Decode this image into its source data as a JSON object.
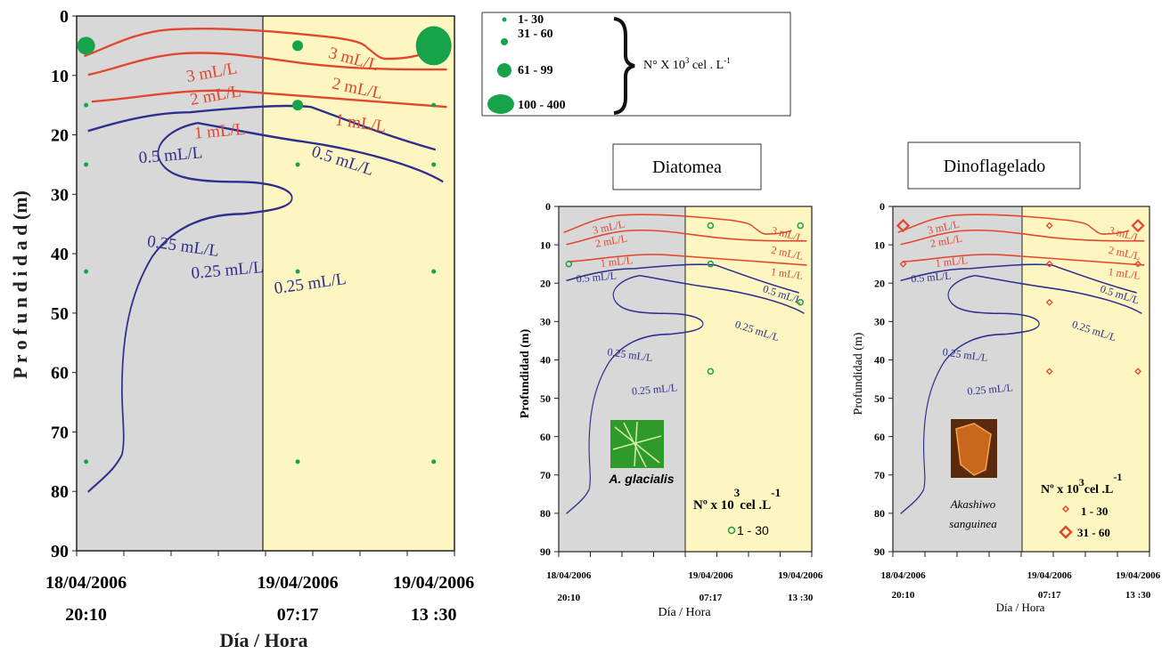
{
  "chart_data": [
    {
      "type": "scatter",
      "panel": "main",
      "ylabel": "P r o f u n d i d a d  (m)",
      "xlabel": "Día / Hora",
      "yticks": [
        "0",
        "10",
        "20",
        "30",
        "40",
        "50",
        "60",
        "70",
        "80",
        "90"
      ],
      "ylim": [
        0,
        90
      ],
      "xticks": [
        {
          "date": "18/04/2006",
          "time": "20:10"
        },
        {
          "date": "19/04/2006",
          "time": "07:17"
        },
        {
          "date": "19/04/2006",
          "time": "13 :30"
        }
      ],
      "contour_labels": [
        "3 mL/L",
        "2 mL/L",
        "1 mL/L",
        "0.5 mL/L",
        "0.25 mL/L",
        "0.25 mL/L",
        "0.25 mL/L",
        "3 mL/L",
        "2 mL/L",
        "1 mL/L",
        "0.5 mL/L"
      ],
      "points": [
        {
          "station": "18/04/2006 20:10",
          "depth": 5,
          "class": "61 - 99"
        },
        {
          "station": "18/04/2006 20:10",
          "depth": 15,
          "class": "1- 30"
        },
        {
          "station": "18/04/2006 20:10",
          "depth": 25,
          "class": "1- 30"
        },
        {
          "station": "18/04/2006 20:10",
          "depth": 43,
          "class": "1- 30"
        },
        {
          "station": "18/04/2006 20:10",
          "depth": 75,
          "class": "1- 30"
        },
        {
          "station": "19/04/2006 07:17",
          "depth": 5,
          "class": "31 - 60"
        },
        {
          "station": "19/04/2006 07:17",
          "depth": 15,
          "class": "31 - 60"
        },
        {
          "station": "19/04/2006 07:17",
          "depth": 25,
          "class": "1- 30"
        },
        {
          "station": "19/04/2006 07:17",
          "depth": 43,
          "class": "1- 30"
        },
        {
          "station": "19/04/2006 07:17",
          "depth": 75,
          "class": "1- 30"
        },
        {
          "station": "19/04/2006 13:30",
          "depth": 5,
          "class": "100 - 400"
        },
        {
          "station": "19/04/2006 13:30",
          "depth": 15,
          "class": "1- 30"
        },
        {
          "station": "19/04/2006 13:30",
          "depth": 25,
          "class": "1- 30"
        },
        {
          "station": "19/04/2006 13:30",
          "depth": 43,
          "class": "1- 30"
        },
        {
          "station": "19/04/2006 13:30",
          "depth": 75,
          "class": "1- 30"
        }
      ],
      "legend": {
        "entries": [
          "1- 30",
          "31 - 60",
          "61 - 99",
          "100 - 400"
        ],
        "unit_prefix": "N° X 10",
        "unit_exp": "3",
        "unit_mid": " cel . L",
        "unit_exp2": "-1"
      },
      "colors": {
        "night_bg": "#d8d8d8",
        "day_bg": "#fdf6c0",
        "red": "#e2462d",
        "blue": "#2e2e8e",
        "green": "#16a34a"
      }
    },
    {
      "type": "scatter",
      "panel": "diatomea",
      "title": "Diatomea",
      "ylabel": "Profundidad (m)",
      "xlabel": "Día / Hora",
      "yticks": [
        "0",
        "10",
        "20",
        "30",
        "40",
        "50",
        "60",
        "70",
        "80",
        "90"
      ],
      "xticks": [
        {
          "date": "18/04/2006",
          "time": "20:10"
        },
        {
          "date": "19/04/2006",
          "time": "07:17"
        },
        {
          "date": "19/04/2006",
          "time": "13 :30"
        }
      ],
      "contour_labels": [
        "3 mL/L",
        "2 mL/L",
        "1 mL/L",
        "0.5 mL/L",
        "0.25 mL/L",
        "0.25 mL/L",
        "0.25 mL/L",
        "3 mL/L",
        "2 mL/L",
        "1 mL/L",
        "0.5 mL/L"
      ],
      "points": [
        {
          "station": "18/04/2006 20:10",
          "depth": 15,
          "class": "1 - 30"
        },
        {
          "station": "19/04/2006 07:17",
          "depth": 5,
          "class": "1 - 30"
        },
        {
          "station": "19/04/2006 07:17",
          "depth": 15,
          "class": "1 - 30"
        },
        {
          "station": "19/04/2006 07:17",
          "depth": 43,
          "class": "1 - 30"
        },
        {
          "station": "19/04/2006 13:30",
          "depth": 5,
          "class": "1 - 30"
        },
        {
          "station": "19/04/2006 13:30",
          "depth": 25,
          "class": "1 - 30"
        }
      ],
      "species": "A. glacialis",
      "legend": {
        "unit_prefix": "Nº x 10",
        "unit_exp": "3",
        "unit_mid": "cel  .L",
        "unit_exp2": "-1",
        "entries": [
          "1 - 30"
        ]
      }
    },
    {
      "type": "scatter",
      "panel": "dinoflagelado",
      "title": "Dinoflagelado",
      "ylabel": "Profundidad (m)",
      "xlabel": "Día / Hora",
      "yticks": [
        "0",
        "10",
        "20",
        "30",
        "40",
        "50",
        "60",
        "70",
        "80",
        "90"
      ],
      "xticks": [
        {
          "date": "18/04/2006",
          "time": "20:10"
        },
        {
          "date": "19/04/2006",
          "time": "07:17"
        },
        {
          "date": "19/04/2006",
          "time": "13 :30"
        }
      ],
      "contour_labels": [
        "3 mL/L",
        "2 mL/L",
        "1 mL/L",
        "0.5 mL/L",
        "0.25 mL/L",
        "0.25 mL/L",
        "0.25 mL/L",
        "3 mL/L",
        "2 mL/L",
        "1 mL/L",
        "0.5 mL/L"
      ],
      "points": [
        {
          "station": "18/04/2006 20:10",
          "depth": 5,
          "class": "31 - 60"
        },
        {
          "station": "18/04/2006 20:10",
          "depth": 15,
          "class": "1 - 30"
        },
        {
          "station": "19/04/2006 07:17",
          "depth": 5,
          "class": "1 - 30"
        },
        {
          "station": "19/04/2006 07:17",
          "depth": 15,
          "class": "1 - 30"
        },
        {
          "station": "19/04/2006 07:17",
          "depth": 25,
          "class": "1 - 30"
        },
        {
          "station": "19/04/2006 07:17",
          "depth": 43,
          "class": "1 - 30"
        },
        {
          "station": "19/04/2006 13:30",
          "depth": 5,
          "class": "31 - 60"
        },
        {
          "station": "19/04/2006 13:30",
          "depth": 15,
          "class": "1 - 30"
        },
        {
          "station": "19/04/2006 13:30",
          "depth": 43,
          "class": "1 - 30"
        }
      ],
      "species_line1": "Akashiwo",
      "species_line2": "sanguinea",
      "legend": {
        "unit_prefix": "Nº x 10",
        "unit_exp": "3",
        "unit_mid": "cel  .L",
        "unit_exp2": "-1",
        "entries": [
          "1 - 30",
          "31 - 60"
        ]
      }
    }
  ]
}
